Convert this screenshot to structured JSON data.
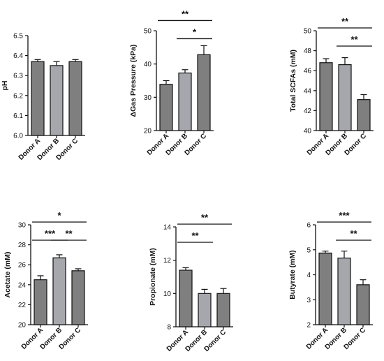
{
  "chart_data": [
    {
      "type": "bar",
      "ylabel": "pH",
      "categories": [
        "Donor A",
        "Donor B",
        "Donor C"
      ],
      "values": [
        6.37,
        6.35,
        6.37
      ],
      "errors": [
        0.01,
        0.02,
        0.01
      ],
      "ylim": [
        6.0,
        6.5
      ],
      "yticks": [
        "6.0",
        "6.1",
        "6.2",
        "6.3",
        "6.4",
        "6.5"
      ],
      "bar_colors": [
        "#7f7f7f",
        "#a6a6ad",
        "#7f7f7f"
      ],
      "significance": []
    },
    {
      "type": "bar",
      "ylabel": "ΔGas Pressure (kPa)",
      "categories": [
        "Donor A",
        "Donor B",
        "Donor C"
      ],
      "values": [
        33.9,
        37.3,
        42.8
      ],
      "errors": [
        1.1,
        1.0,
        2.7
      ],
      "ylim": [
        20,
        50
      ],
      "yticks": [
        "20",
        "30",
        "40",
        "50"
      ],
      "bar_colors": [
        "#7f7f7f",
        "#a6a6ad",
        "#7f7f7f"
      ],
      "significance": [
        {
          "from": 0,
          "to": 2,
          "label": "**"
        },
        {
          "from": 1,
          "to": 2,
          "label": "*"
        }
      ]
    },
    {
      "type": "bar",
      "ylabel": "Total SCFAs (mM)",
      "categories": [
        "Donor A",
        "Donor B",
        "Donor C"
      ],
      "values": [
        46.8,
        46.6,
        43.1
      ],
      "errors": [
        0.4,
        0.7,
        0.5
      ],
      "ylim": [
        40,
        50
      ],
      "yticks": [
        "40",
        "42",
        "44",
        "46",
        "48",
        "50"
      ],
      "bar_colors": [
        "#7f7f7f",
        "#a6a6ad",
        "#7f7f7f"
      ],
      "significance": [
        {
          "from": 0,
          "to": 2,
          "label": "**"
        },
        {
          "from": 1,
          "to": 2,
          "label": "**"
        }
      ]
    },
    {
      "type": "bar",
      "ylabel": "Acetate (mM)",
      "categories": [
        "Donor A",
        "Donor B",
        "Donor C"
      ],
      "values": [
        24.5,
        26.7,
        25.4
      ],
      "errors": [
        0.4,
        0.3,
        0.2
      ],
      "ylim": [
        20,
        30
      ],
      "yticks": [
        "20",
        "22",
        "24",
        "26",
        "28",
        "30"
      ],
      "bar_colors": [
        "#7f7f7f",
        "#a6a6ad",
        "#7f7f7f"
      ],
      "significance": [
        {
          "from": 0,
          "to": 2,
          "label": "*"
        },
        {
          "from": 0,
          "to": 1,
          "label": "***"
        },
        {
          "from": 1,
          "to": 2,
          "label": "**"
        }
      ]
    },
    {
      "type": "bar",
      "ylabel": "Propionate (mM)",
      "categories": [
        "Donor A",
        "Donor B",
        "Donor C"
      ],
      "values": [
        11.4,
        10.0,
        10.0
      ],
      "errors": [
        0.15,
        0.25,
        0.3
      ],
      "ylim": [
        8,
        14
      ],
      "yticks": [
        "8",
        "10",
        "12",
        "14"
      ],
      "bar_colors": [
        "#7f7f7f",
        "#a6a6ad",
        "#7f7f7f"
      ],
      "significance": [
        {
          "from": 0,
          "to": 2,
          "label": "**"
        },
        {
          "from": 0,
          "to": 1,
          "label": "**"
        }
      ]
    },
    {
      "type": "bar",
      "ylabel": "Butyrate (mM)",
      "categories": [
        "Donor A",
        "Donor B",
        "Donor C"
      ],
      "values": [
        4.87,
        4.67,
        3.6
      ],
      "errors": [
        0.08,
        0.28,
        0.2
      ],
      "ylim": [
        2,
        6
      ],
      "yticks": [
        "2",
        "3",
        "4",
        "5",
        "6"
      ],
      "bar_colors": [
        "#7f7f7f",
        "#a6a6ad",
        "#7f7f7f"
      ],
      "significance": [
        {
          "from": 0,
          "to": 2,
          "label": "***"
        },
        {
          "from": 1,
          "to": 2,
          "label": "**"
        }
      ]
    }
  ]
}
